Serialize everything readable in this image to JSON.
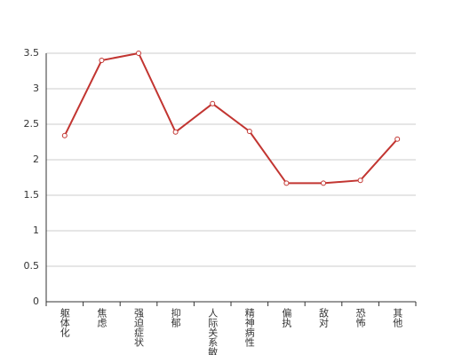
{
  "chart_data": {
    "type": "line",
    "categories": [
      "躯体化",
      "焦虑",
      "强迫症状",
      "抑郁",
      "人际关系敏感",
      "精神病性",
      "偏执",
      "敌对",
      "恐怖",
      "其他"
    ],
    "series": [
      {
        "name": "",
        "color": "#c23531",
        "values": [
          2.34,
          3.4,
          3.5,
          2.39,
          2.79,
          2.4,
          1.67,
          1.67,
          1.71,
          2.29
        ]
      }
    ],
    "ylim": [
      0,
      3.5
    ],
    "yticks": [
      0,
      0.5,
      1,
      1.5,
      2,
      2.5,
      3,
      3.5
    ],
    "grid": true
  }
}
